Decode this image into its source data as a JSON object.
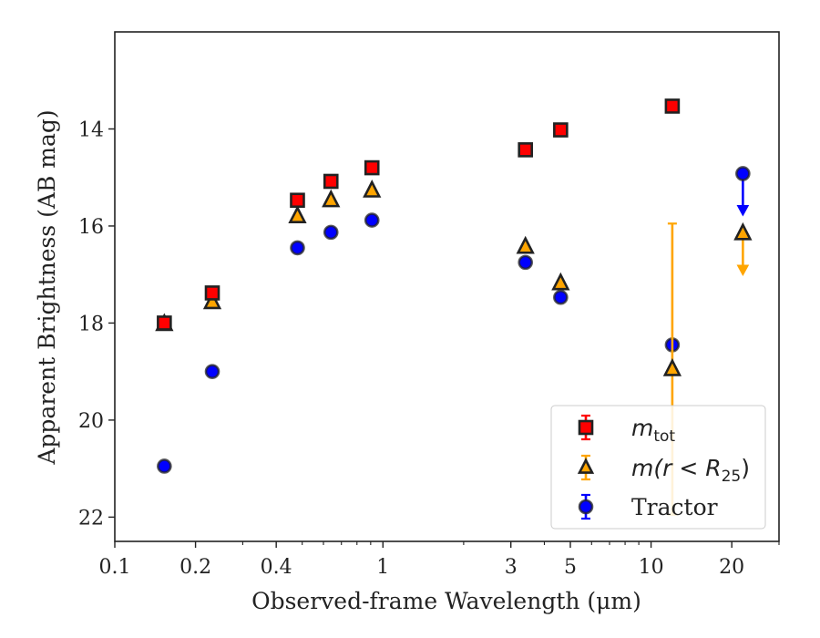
{
  "chart_data": {
    "type": "scatter",
    "xlabel": "Observed-frame Wavelength (μm)",
    "ylabel": "Apparent Brightness (AB mag)",
    "xscale": "log",
    "xlim": [
      0.1,
      30
    ],
    "ylim": [
      22.5,
      12.0
    ],
    "y_inverted": true,
    "grid": false,
    "legend_placement": "lower-right",
    "x_tick_labels": [
      "0.1",
      "0.2",
      "0.4",
      "1",
      "3",
      "5",
      "10",
      "20"
    ],
    "x_tick_values": [
      0.1,
      0.2,
      0.4,
      1,
      3,
      5,
      10,
      20
    ],
    "y_tick_labels": [
      "14",
      "16",
      "18",
      "20",
      "22"
    ],
    "y_tick_values": [
      14,
      16,
      18,
      20,
      22
    ],
    "series": [
      {
        "name": "m_tot",
        "legend_label": {
          "base": "m",
          "sub": "tot"
        },
        "marker": "square",
        "color": "#ff0000",
        "edge_color": "#222222",
        "x": [
          0.153,
          0.231,
          0.48,
          0.64,
          0.91,
          3.4,
          4.6,
          12.0
        ],
        "y": [
          18.0,
          17.38,
          15.47,
          15.08,
          14.8,
          14.43,
          14.02,
          13.53
        ],
        "yerr": [
          0.05,
          0.05,
          0.03,
          0.03,
          0.03,
          0.03,
          0.03,
          0.03
        ]
      },
      {
        "name": "m(r < R25)",
        "legend_label": {
          "base": "m(r < R",
          "sub": "25",
          "tail": ")"
        },
        "marker": "triangle",
        "color": "#ffa500",
        "edge_color": "#222222",
        "x": [
          0.153,
          0.231,
          0.48,
          0.64,
          0.91,
          3.4,
          4.6,
          12.0,
          22.0
        ],
        "y": [
          18.02,
          17.57,
          15.8,
          15.47,
          15.27,
          16.43,
          17.18,
          18.95,
          16.15
        ],
        "yerr": [
          0.05,
          0.05,
          0.04,
          0.04,
          0.04,
          0.05,
          0.05,
          3.0,
          0.0
        ],
        "upper_limit": [
          false,
          false,
          false,
          false,
          false,
          false,
          false,
          false,
          true
        ]
      },
      {
        "name": "Tractor",
        "marker": "circle",
        "color": "#0000ff",
        "edge_color": "#222222",
        "x": [
          0.153,
          0.231,
          0.48,
          0.64,
          0.91,
          3.4,
          4.6,
          12.0,
          22.0
        ],
        "y": [
          20.95,
          19.0,
          16.45,
          16.13,
          15.88,
          16.75,
          17.47,
          18.45,
          14.92
        ],
        "yerr": [
          0.05,
          0.05,
          0.04,
          0.04,
          0.03,
          0.04,
          0.04,
          0.05,
          0.0
        ],
        "upper_limit": [
          false,
          false,
          false,
          false,
          false,
          false,
          false,
          false,
          true
        ]
      }
    ]
  }
}
